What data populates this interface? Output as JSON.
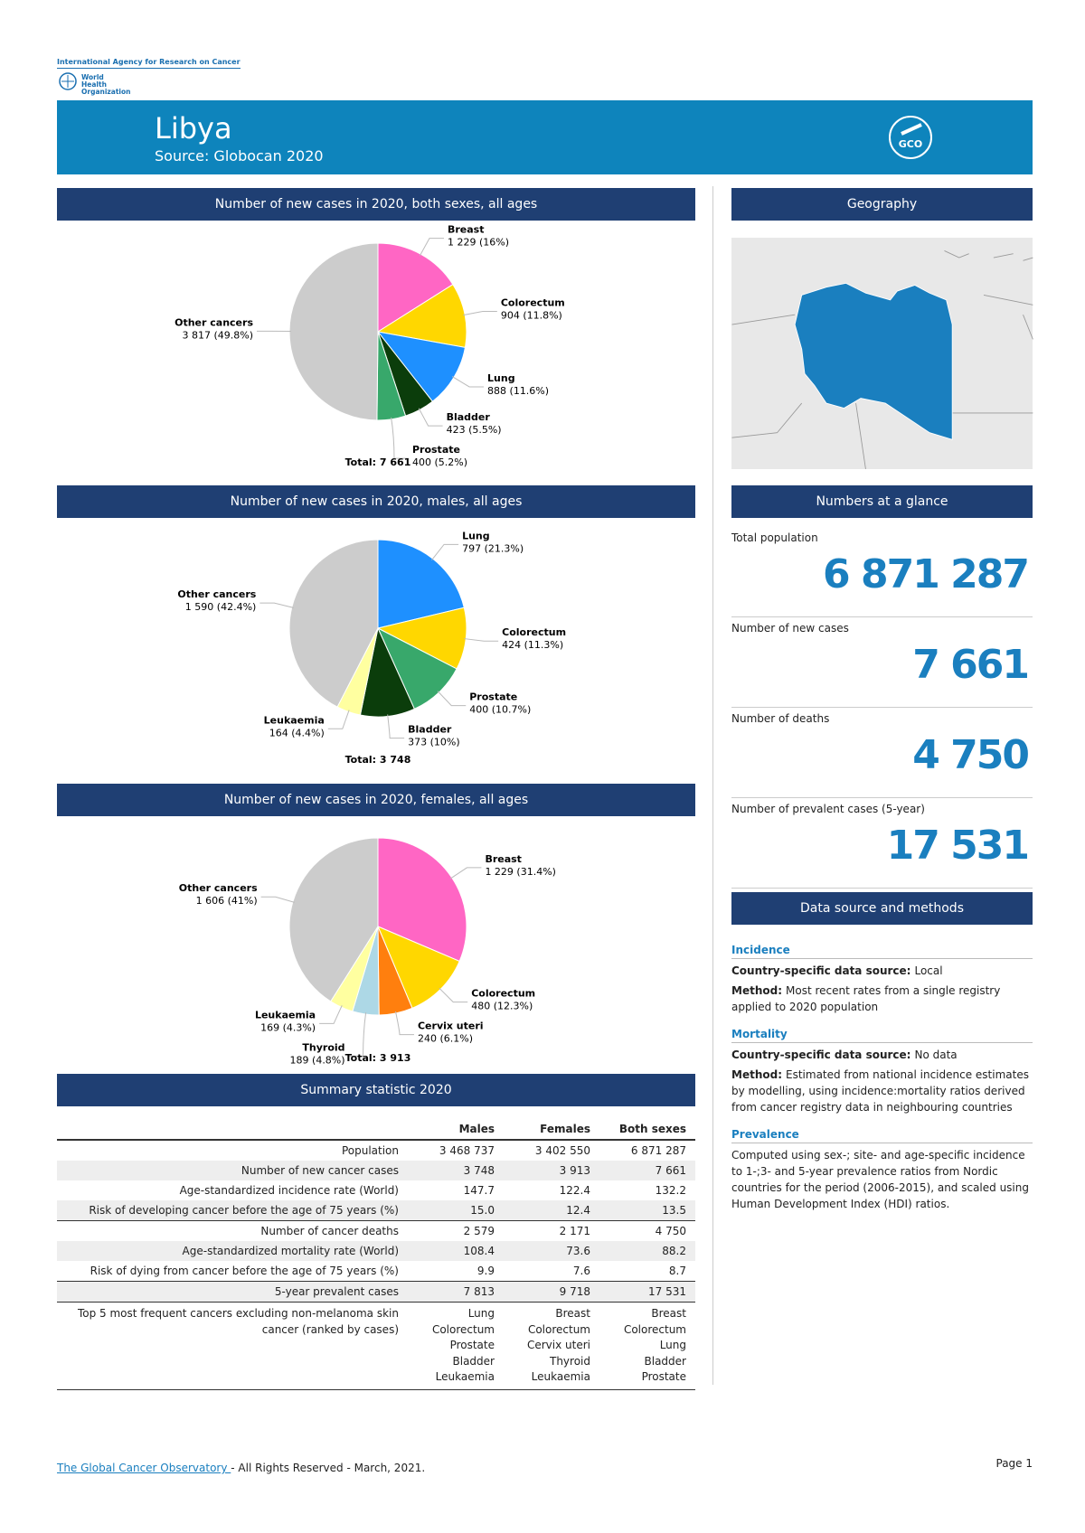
{
  "header": {
    "iarc": "International Agency for Research on Cancer",
    "who": "World Health Organization",
    "title": "Libya",
    "source": "Source: Globocan 2020",
    "logo": "GCO"
  },
  "chart_data": [
    {
      "type": "pie",
      "title": "Number of new cases in 2020, both sexes, all ages",
      "categories": [
        "Breast",
        "Colorectum",
        "Lung",
        "Bladder",
        "Prostate",
        "Other cancers"
      ],
      "values": [
        1229,
        904,
        888,
        423,
        400,
        3817
      ],
      "value_labels": [
        "1 229 (16%)",
        "904 (11.8%)",
        "888 (11.6%)",
        "423 (5.5%)",
        "400 (5.2%)",
        "3 817 (49.8%)"
      ],
      "colors": [
        "#ff66c4",
        "#ffd700",
        "#1e90ff",
        "#0b3d0b",
        "#38a86b",
        "#cccccc"
      ],
      "total": "Total: 7 661"
    },
    {
      "type": "pie",
      "title": "Number of new cases in 2020, males, all ages",
      "categories": [
        "Lung",
        "Colorectum",
        "Prostate",
        "Bladder",
        "Leukaemia",
        "Other cancers"
      ],
      "values": [
        797,
        424,
        400,
        373,
        164,
        1590
      ],
      "value_labels": [
        "797 (21.3%)",
        "424 (11.3%)",
        "400 (10.7%)",
        "373 (10%)",
        "164 (4.4%)",
        "1 590 (42.4%)"
      ],
      "colors": [
        "#1e90ff",
        "#ffd700",
        "#38a86b",
        "#0b3d0b",
        "#ffffa0",
        "#cccccc"
      ],
      "total": "Total: 3 748"
    },
    {
      "type": "pie",
      "title": "Number of new cases in 2020, females, all ages",
      "categories": [
        "Breast",
        "Colorectum",
        "Cervix uteri",
        "Thyroid",
        "Leukaemia",
        "Other cancers"
      ],
      "values": [
        1229,
        480,
        240,
        189,
        169,
        1606
      ],
      "value_labels": [
        "1 229 (31.4%)",
        "480 (12.3%)",
        "240 (6.1%)",
        "189 (4.8%)",
        "169 (4.3%)",
        "1 606 (41%)"
      ],
      "colors": [
        "#ff66c4",
        "#ffd700",
        "#ff7f0e",
        "#add8e6",
        "#ffffa0",
        "#cccccc"
      ],
      "total": "Total: 3 913"
    }
  ],
  "geography": {
    "title": "Geography"
  },
  "glance": {
    "title": "Numbers at a glance",
    "items": [
      {
        "label": "Total population",
        "value": "6 871 287"
      },
      {
        "label": "Number of new cases",
        "value": "7 661"
      },
      {
        "label": "Number of deaths",
        "value": "4 750"
      },
      {
        "label": "Number of prevalent cases (5-year)",
        "value": "17 531"
      }
    ]
  },
  "methods": {
    "title": "Data source and methods",
    "sections": [
      {
        "heading": "Incidence",
        "lines": [
          {
            "label": "Country-specific data source:",
            "text": "Local"
          },
          {
            "label": "Method:",
            "text": "Most recent rates from a single registry applied to 2020 population"
          }
        ]
      },
      {
        "heading": "Mortality",
        "lines": [
          {
            "label": "Country-specific data source:",
            "text": "No data"
          },
          {
            "label": "Method:",
            "text": "Estimated from national incidence estimates by modelling, using incidence:mortality ratios derived from cancer registry data in neighbouring countries"
          }
        ]
      },
      {
        "heading": "Prevalence",
        "lines": [
          {
            "text": "Computed using sex-; site- and age-specific incidence to 1-;3- and 5-year prevalence ratios from Nordic countries for the period (2006-2015), and scaled using Human Development Index (HDI) ratios."
          }
        ]
      }
    ]
  },
  "summary": {
    "title": "Summary statistic 2020",
    "columns": [
      "Males",
      "Females",
      "Both sexes"
    ],
    "rows": [
      {
        "label": "Population",
        "cells": [
          "3 468 737",
          "3 402 550",
          "6 871 287"
        ]
      },
      {
        "label": "Number of new cancer cases",
        "cells": [
          "3 748",
          "3 913",
          "7 661"
        ]
      },
      {
        "label": "Age-standardized incidence rate (World)",
        "cells": [
          "147.7",
          "122.4",
          "132.2"
        ]
      },
      {
        "label": "Risk of developing cancer before the age of 75 years (%)",
        "cells": [
          "15.0",
          "12.4",
          "13.5"
        ]
      },
      {
        "label": "Number of cancer deaths",
        "cells": [
          "2 579",
          "2 171",
          "4 750"
        ]
      },
      {
        "label": "Age-standardized mortality rate (World)",
        "cells": [
          "108.4",
          "73.6",
          "88.2"
        ]
      },
      {
        "label": "Risk of dying from cancer before the age of 75 years (%)",
        "cells": [
          "9.9",
          "7.6",
          "8.7"
        ]
      },
      {
        "label": "5-year prevalent cases",
        "cells": [
          "7 813",
          "9 718",
          "17 531"
        ]
      }
    ],
    "top5": {
      "label": "Top 5 most frequent cancers excluding non-melanoma skin cancer (ranked by cases)",
      "cells": [
        [
          "Lung",
          "Colorectum",
          "Prostate",
          "Bladder",
          "Leukaemia"
        ],
        [
          "Breast",
          "Colorectum",
          "Cervix uteri",
          "Thyroid",
          "Leukaemia"
        ],
        [
          "Breast",
          "Colorectum",
          "Lung",
          "Bladder",
          "Prostate"
        ]
      ]
    }
  },
  "footer": {
    "link": "The Global Cancer Observatory ",
    "rights": " - All Rights Reserved - March, 2021.",
    "page": "Page 1"
  }
}
